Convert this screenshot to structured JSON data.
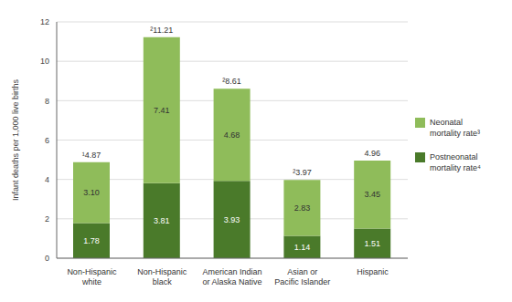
{
  "chart_data": {
    "type": "bar",
    "stacked": true,
    "categories": [
      "Non-Hispanic\nwhite",
      "Non-Hispanic\nblack",
      "American Indian\nor Alaska Native",
      "Asian or\nPacific Islander",
      "Hispanic"
    ],
    "series": [
      {
        "name": "Postneonatal\nmortality rate⁴",
        "color": "#4a7a2a",
        "values": [
          1.78,
          3.81,
          3.93,
          1.14,
          1.51
        ],
        "value_labels": [
          "1.78",
          "3.81",
          "3.93",
          "1.14",
          "1.51"
        ]
      },
      {
        "name": "Neonatal\nmortality rate³",
        "color": "#8fbc5a",
        "values": [
          3.1,
          7.41,
          4.68,
          2.83,
          3.45
        ],
        "value_labels": [
          "3.10",
          "7.41",
          "4.68",
          "2.83",
          "3.45"
        ]
      }
    ],
    "total_labels": [
      "¹4.87",
      "²11.21",
      "²8.61",
      "²3.97",
      "4.96"
    ],
    "ylabel": "Infant deaths per 1,000 live births",
    "ylim": [
      0,
      12
    ],
    "yticks": [
      0,
      2,
      4,
      6,
      8,
      10,
      12
    ],
    "grid": true,
    "legend": "right",
    "data_labels": true
  }
}
